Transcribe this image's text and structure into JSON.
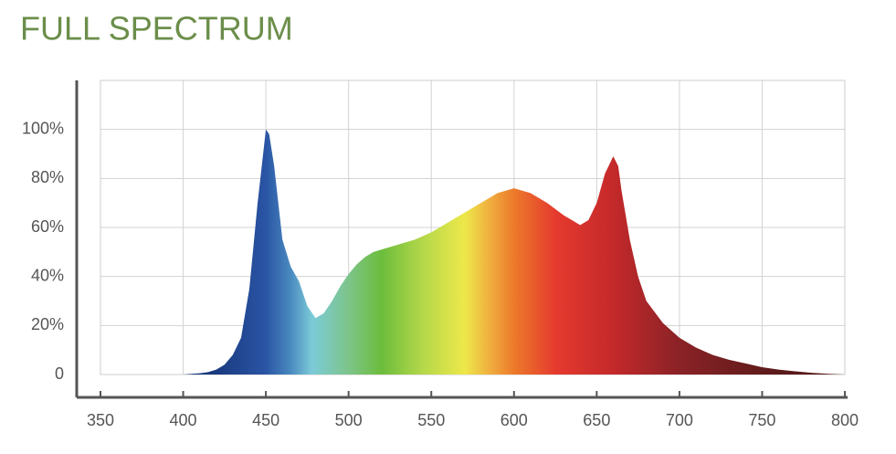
{
  "chart_data": {
    "type": "area",
    "title": "FULL SPECTRUM",
    "x": [
      350,
      400,
      405,
      410,
      415,
      420,
      425,
      430,
      435,
      440,
      445,
      450,
      452,
      455,
      460,
      465,
      470,
      475,
      480,
      485,
      490,
      495,
      500,
      505,
      510,
      515,
      520,
      530,
      540,
      550,
      560,
      570,
      580,
      590,
      600,
      610,
      620,
      630,
      640,
      645,
      650,
      655,
      660,
      663,
      665,
      670,
      675,
      680,
      690,
      700,
      710,
      720,
      730,
      740,
      750,
      760,
      770,
      780,
      790,
      800
    ],
    "values": [
      0,
      0,
      0.3,
      0.5,
      1,
      2,
      4,
      8,
      15,
      35,
      70,
      100,
      98,
      85,
      55,
      44,
      38,
      28,
      23,
      25,
      30,
      36,
      41,
      45,
      48,
      50,
      51,
      53,
      55,
      58,
      62,
      66,
      70,
      74,
      76,
      74,
      70,
      65,
      61,
      63,
      70,
      82,
      89,
      85,
      75,
      55,
      40,
      30,
      21,
      15,
      11,
      8,
      6,
      4.5,
      3,
      2,
      1.3,
      0.7,
      0.3,
      0
    ],
    "gradient": [
      {
        "x": 420,
        "color": "#1a3a80"
      },
      {
        "x": 450,
        "color": "#2a55a5"
      },
      {
        "x": 465,
        "color": "#4a8ac0"
      },
      {
        "x": 478,
        "color": "#7ccbd8"
      },
      {
        "x": 500,
        "color": "#7cc48a"
      },
      {
        "x": 520,
        "color": "#6cbd3c"
      },
      {
        "x": 545,
        "color": "#b5d84a"
      },
      {
        "x": 570,
        "color": "#ede84a"
      },
      {
        "x": 585,
        "color": "#f0b040"
      },
      {
        "x": 600,
        "color": "#ec7a2a"
      },
      {
        "x": 625,
        "color": "#e53a2e"
      },
      {
        "x": 660,
        "color": "#c4292a"
      },
      {
        "x": 700,
        "color": "#8a2226"
      },
      {
        "x": 760,
        "color": "#5a1a1a"
      }
    ],
    "xlim": [
      350,
      800
    ],
    "xticks": [
      350,
      400,
      450,
      500,
      550,
      600,
      650,
      700,
      750,
      800
    ],
    "ylim": [
      0,
      120
    ],
    "yticks": [
      0,
      {
        "value": 20,
        "label": "20%"
      },
      {
        "value": 40,
        "label": "40%"
      },
      {
        "value": 60,
        "label": "60%"
      },
      {
        "value": 80,
        "label": "80%"
      },
      {
        "value": 100,
        "label": "100%"
      }
    ],
    "grid": true
  }
}
